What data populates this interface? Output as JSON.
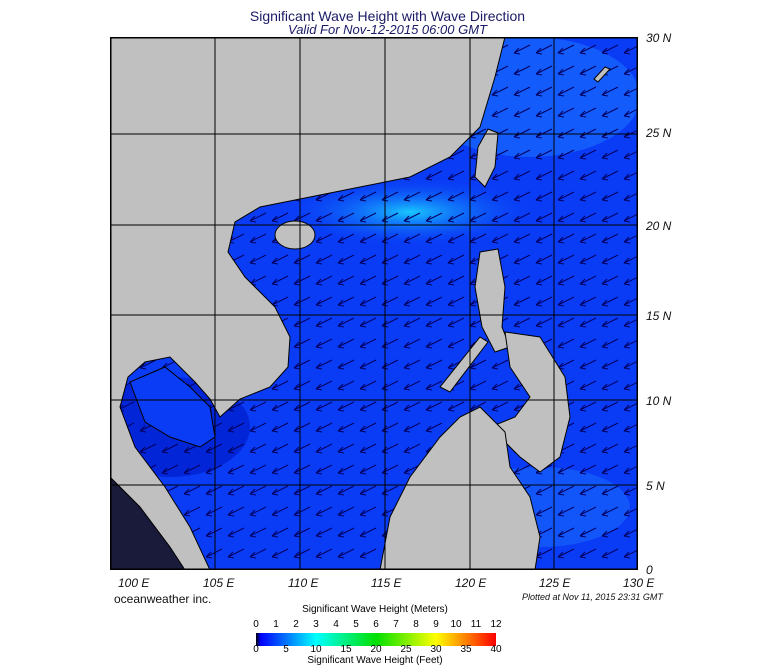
{
  "title": "Significant Wave Height with Wave Direction",
  "subtitle": "Valid For Nov-12-2015 06:00 GMT",
  "lon_labels": [
    "100 E",
    "105 E",
    "110 E",
    "115 E",
    "120 E",
    "125 E",
    "130 E"
  ],
  "lat_labels": [
    "30 N",
    "25 N",
    "20 N",
    "15 N",
    "10 N",
    "5 N",
    "0"
  ],
  "credit": "oceanweather inc.",
  "plotted": "Plotted at Nov 11, 2015 23:31 GMT",
  "legend": {
    "meters_title": "Significant Wave Height (Meters)",
    "meters_ticks": [
      "0",
      "1",
      "2",
      "3",
      "4",
      "5",
      "6",
      "7",
      "8",
      "9",
      "10",
      "11",
      "12"
    ],
    "feet_title": "Significant Wave Height (Feet)",
    "feet_ticks": [
      "0",
      "5",
      "10",
      "15",
      "20",
      "25",
      "30",
      "35",
      "40"
    ]
  },
  "colors": {
    "land": "#c0c0c0",
    "ocean": "#0a3cf5",
    "ocean_light": "#1e8cff",
    "ocean_dark": "#000050",
    "arrows": "#000060"
  },
  "map_extent": {
    "lon": [
      98.6,
      130
    ],
    "lat": [
      0,
      30
    ]
  },
  "wave_direction": "toward southwest"
}
